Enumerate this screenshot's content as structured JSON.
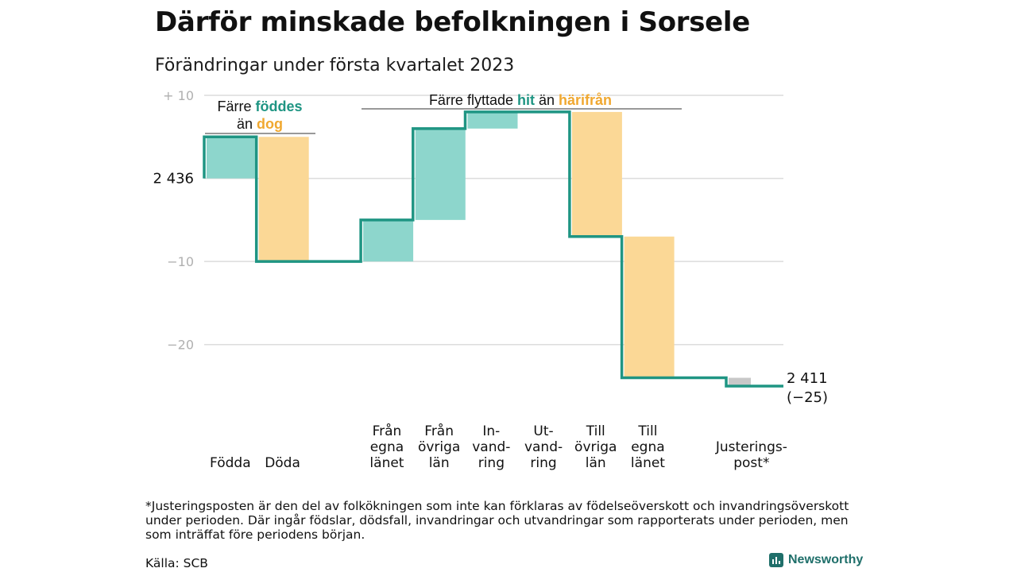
{
  "title": "Därför minskade befolkningen i Sorsele",
  "subtitle": "Förändringar under första kvartalet 2023",
  "footnote": "*Justeringsposten är den del av folkökningen som inte kan förklaras av födelseöverskott och invandringsöverskott under perioden. Där ingår födslar, dödsfall, invandringar och utvandringar som rapporterats under perioden, men som inträffat före periodens början.",
  "source": "Källa: SCB",
  "brand": "Newsworthy",
  "colors": {
    "increase": "#8dd6cc",
    "decrease": "#fbd896",
    "adjustment": "#c8c8c8",
    "line": "#1f9583",
    "hit": "#1f9583",
    "harifran": "#f0a830"
  },
  "chart_data": {
    "type": "bar",
    "subtype": "waterfall",
    "start_label": "2 436",
    "end_label": "2 411",
    "end_change_label": "(−25)",
    "start_value": 0,
    "ylim": [
      -25,
      10
    ],
    "yticks": [
      10,
      -10,
      -20
    ],
    "ytick_labels": [
      "+ 10",
      "−10",
      "−20"
    ],
    "zero_gridline": true,
    "categories": [
      [
        "Födda"
      ],
      [
        "Döda"
      ],
      [],
      [
        "Från",
        "egna",
        "länet"
      ],
      [
        "Från",
        "övriga",
        "län"
      ],
      [
        "In-",
        "vand-",
        "ring"
      ],
      [
        "Ut-",
        "vand-",
        "ring"
      ],
      [
        "Till",
        "övriga",
        "län"
      ],
      [
        "Till",
        "egna",
        "länet"
      ],
      [],
      [
        "Justerings-",
        "post*"
      ]
    ],
    "changes": [
      5,
      -15,
      0,
      5,
      11,
      2,
      0,
      -15,
      -17,
      0,
      -1
    ],
    "annotations": [
      {
        "parts": [
          {
            "text": "Färre ",
            "color": "#111111"
          },
          {
            "text": "föddes",
            "color": "#1f9583"
          }
        ],
        "parts2": [
          {
            "text": "än ",
            "color": "#111111"
          },
          {
            "text": "dog",
            "color": "#f0a830"
          }
        ]
      },
      {
        "parts": [
          {
            "text": "Färre flyttade ",
            "color": "#111111"
          },
          {
            "text": "hit",
            "color": "#1f9583"
          },
          {
            "text": " än ",
            "color": "#111111"
          },
          {
            "text": "härifrån",
            "color": "#f0a830"
          }
        ]
      }
    ]
  }
}
